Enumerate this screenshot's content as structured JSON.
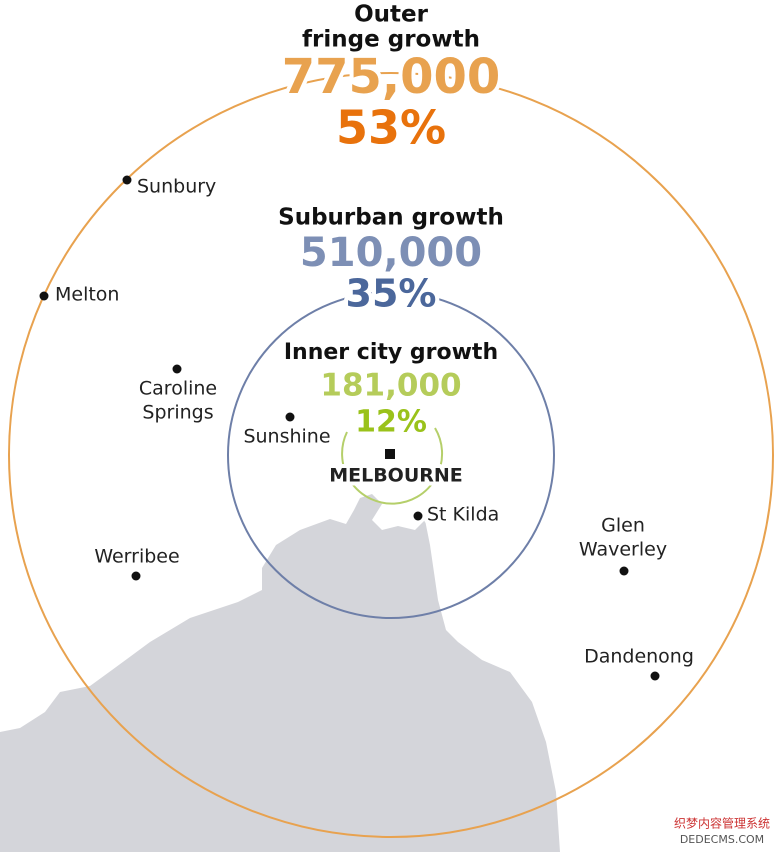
{
  "rings": [
    {
      "title": [
        "Outer",
        "fringe growth"
      ],
      "number": "775,000",
      "percent": "53%"
    },
    {
      "title": [
        "Suburban growth"
      ],
      "number": "510,000",
      "percent": "35%"
    },
    {
      "title": [
        "Inner city growth"
      ],
      "number": "181,000",
      "percent": "12%"
    }
  ],
  "places": [
    {
      "label": [
        "Sunbury"
      ]
    },
    {
      "label": [
        "Melton"
      ]
    },
    {
      "label": [
        "Caroline",
        "Springs"
      ]
    },
    {
      "label": [
        "Sunshine"
      ]
    },
    {
      "label": [
        "MELBOURNE"
      ]
    },
    {
      "label": [
        "St Kilda"
      ]
    },
    {
      "label": [
        "Glen",
        "Waverley"
      ]
    },
    {
      "label": [
        "Werribee"
      ]
    },
    {
      "label": [
        "Dandenong"
      ]
    }
  ],
  "watermark": [
    "织梦内容管理系统",
    "DEDECMS.COM"
  ]
}
